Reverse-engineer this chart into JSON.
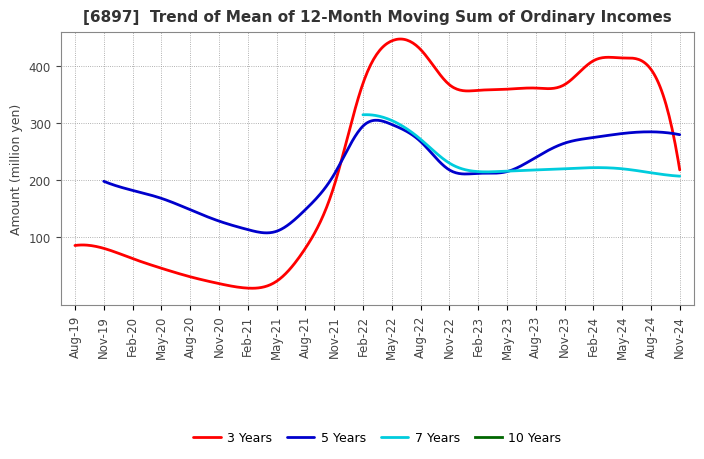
{
  "title": "[6897]  Trend of Mean of 12-Month Moving Sum of Ordinary Incomes",
  "ylabel": "Amount (million yen)",
  "ylim": [
    -20,
    460
  ],
  "yticks": [
    100,
    200,
    300,
    400
  ],
  "x_labels": [
    "Aug-19",
    "Nov-19",
    "Feb-20",
    "May-20",
    "Aug-20",
    "Nov-20",
    "Feb-21",
    "May-21",
    "Aug-21",
    "Nov-21",
    "Feb-22",
    "May-22",
    "Aug-22",
    "Nov-22",
    "Feb-23",
    "May-23",
    "Aug-23",
    "Nov-23",
    "Feb-24",
    "May-24",
    "Aug-24",
    "Nov-24"
  ],
  "series": {
    "3 Years": {
      "color": "#ff0000",
      "data": [
        85,
        80,
        62,
        45,
        30,
        18,
        10,
        22,
        80,
        190,
        370,
        445,
        430,
        368,
        358,
        360,
        362,
        368,
        410,
        415,
        395,
        218
      ]
    },
    "5 Years": {
      "color": "#0000cc",
      "data": [
        null,
        198,
        182,
        168,
        148,
        128,
        113,
        110,
        148,
        210,
        295,
        298,
        268,
        218,
        212,
        215,
        240,
        265,
        275,
        282,
        285,
        280
      ]
    },
    "7 Years": {
      "color": "#00ccdd",
      "data": [
        null,
        null,
        null,
        null,
        null,
        null,
        null,
        null,
        null,
        null,
        315,
        305,
        272,
        230,
        215,
        216,
        218,
        220,
        222,
        220,
        213,
        207
      ]
    },
    "10 Years": {
      "color": "#006600",
      "data": [
        null,
        null,
        null,
        null,
        null,
        null,
        null,
        null,
        null,
        null,
        null,
        null,
        null,
        null,
        null,
        null,
        null,
        null,
        null,
        null,
        null,
        null
      ]
    }
  },
  "legend_labels": [
    "3 Years",
    "5 Years",
    "7 Years",
    "10 Years"
  ],
  "background_color": "#ffffff",
  "grid_color": "#999999",
  "title_fontsize": 11,
  "label_fontsize": 9,
  "tick_fontsize": 8.5
}
